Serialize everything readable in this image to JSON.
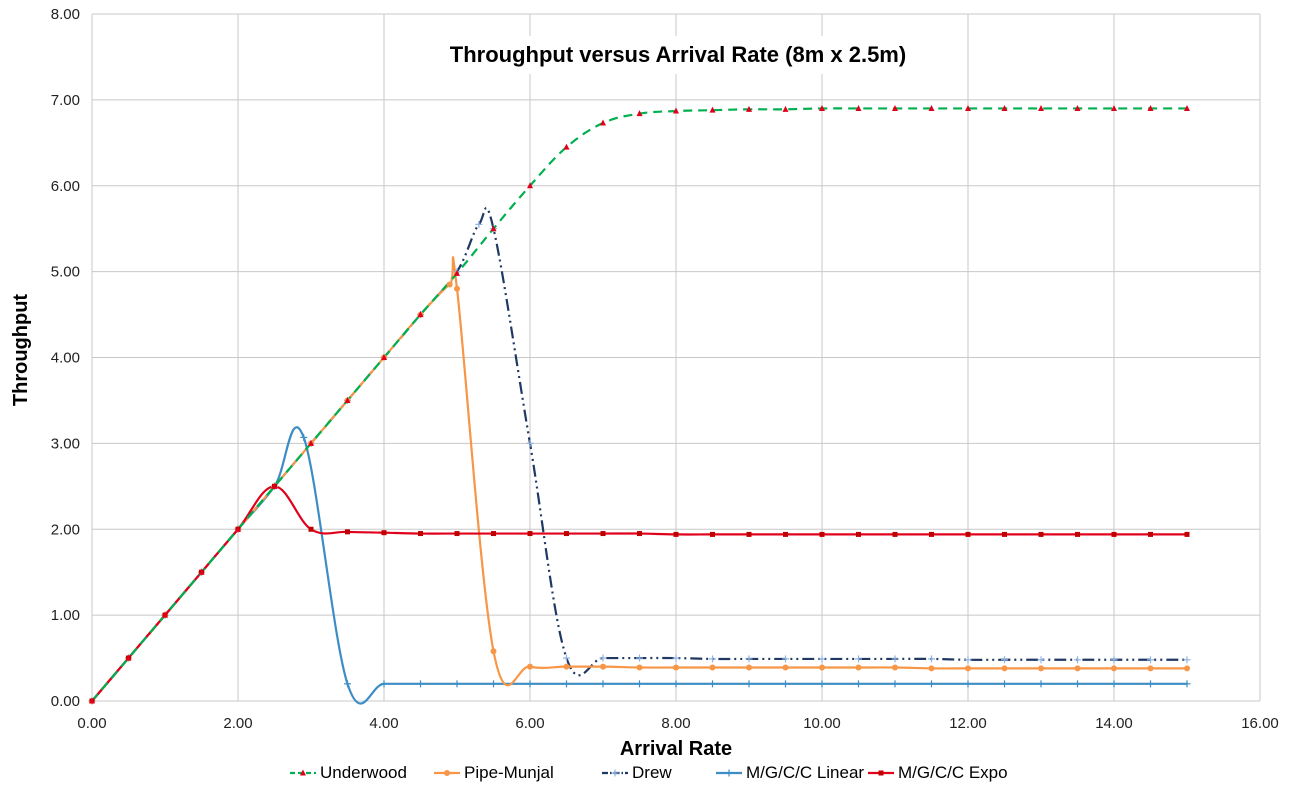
{
  "chart_data": {
    "type": "line",
    "title": "Throughput versus Arrival Rate (8m x 2.5m)",
    "xlabel": "Arrival Rate",
    "ylabel": "Throughput",
    "xlim": [
      0,
      16
    ],
    "ylim": [
      0,
      8
    ],
    "x_ticks": [
      "0.00",
      "2.00",
      "4.00",
      "6.00",
      "8.00",
      "10.00",
      "12.00",
      "14.00",
      "16.00"
    ],
    "y_ticks": [
      "0.00",
      "1.00",
      "2.00",
      "3.00",
      "4.00",
      "5.00",
      "6.00",
      "7.00",
      "8.00"
    ],
    "grid": true,
    "legend_position": "bottom",
    "series": [
      {
        "name": "Underwood",
        "color": "#00b050",
        "marker_color": "#e0001b",
        "dash": "dashed",
        "marker": "triangle",
        "x": [
          0,
          0.5,
          1,
          1.5,
          2,
          2.5,
          3,
          3.5,
          4,
          4.5,
          5,
          5.5,
          6,
          6.5,
          7,
          7.5,
          8,
          8.5,
          9,
          9.5,
          10,
          10.5,
          11,
          11.5,
          12,
          12.5,
          13,
          13.5,
          14,
          14.5,
          15
        ],
        "y": [
          0,
          0.5,
          1,
          1.5,
          2,
          2.5,
          3,
          3.5,
          4,
          4.5,
          4.98,
          5.5,
          6.0,
          6.45,
          6.73,
          6.84,
          6.87,
          6.88,
          6.89,
          6.89,
          6.9,
          6.9,
          6.9,
          6.9,
          6.9,
          6.9,
          6.9,
          6.9,
          6.9,
          6.9,
          6.9
        ]
      },
      {
        "name": "Pipe-Munjal",
        "color": "#f79646",
        "marker_color": "#f79646",
        "dash": "solid",
        "marker": "circle",
        "x": [
          0,
          0.5,
          1,
          1.5,
          2,
          2.5,
          3,
          3.5,
          4,
          4.5,
          4.9,
          5.0,
          5.5,
          6,
          6.5,
          7,
          7.5,
          8,
          8.5,
          9,
          9.5,
          10,
          10.5,
          11,
          11.5,
          12,
          12.5,
          13,
          13.5,
          14,
          14.5,
          15
        ],
        "y": [
          0,
          0.5,
          1,
          1.5,
          2,
          2.5,
          3,
          3.5,
          4,
          4.5,
          4.85,
          4.8,
          0.58,
          0.4,
          0.4,
          0.4,
          0.39,
          0.39,
          0.39,
          0.39,
          0.39,
          0.39,
          0.39,
          0.39,
          0.38,
          0.38,
          0.38,
          0.38,
          0.38,
          0.38,
          0.38,
          0.38
        ]
      },
      {
        "name": "Drew",
        "color": "#1f3864",
        "marker_color": "#8eb4e3",
        "dash": "dashdotdot",
        "marker": "plus",
        "x": [
          0,
          0.5,
          1,
          1.5,
          2,
          2.5,
          3,
          3.5,
          4,
          4.5,
          5,
          5.3,
          5.5,
          6,
          6.5,
          7,
          7.5,
          8,
          8.5,
          9,
          9.5,
          10,
          10.5,
          11,
          11.5,
          12,
          12.5,
          13,
          13.5,
          14,
          14.5,
          15
        ],
        "y": [
          0,
          0.5,
          1,
          1.5,
          2,
          2.5,
          3,
          3.5,
          4,
          4.5,
          5.0,
          5.55,
          5.5,
          3.0,
          0.5,
          0.5,
          0.5,
          0.5,
          0.49,
          0.49,
          0.49,
          0.49,
          0.49,
          0.49,
          0.49,
          0.48,
          0.48,
          0.48,
          0.48,
          0.48,
          0.48,
          0.48
        ]
      },
      {
        "name": "M/G/C/C Linear",
        "color": "#3c8dc5",
        "marker_color": "#3c8dc5",
        "dash": "solid",
        "marker": "plus",
        "x": [
          0,
          0.5,
          1,
          1.5,
          2,
          2.5,
          2.9,
          3.5,
          4,
          4.5,
          5,
          5.5,
          6,
          6.5,
          7,
          7.5,
          8,
          8.5,
          9,
          9.5,
          10,
          10.5,
          11,
          11.5,
          12,
          12.5,
          13,
          13.5,
          14,
          14.5,
          15
        ],
        "y": [
          0,
          0.5,
          1,
          1.5,
          2,
          2.5,
          3.07,
          0.2,
          0.2,
          0.2,
          0.2,
          0.2,
          0.2,
          0.2,
          0.2,
          0.2,
          0.2,
          0.2,
          0.2,
          0.2,
          0.2,
          0.2,
          0.2,
          0.2,
          0.2,
          0.2,
          0.2,
          0.2,
          0.2,
          0.2,
          0.2
        ]
      },
      {
        "name": "M/G/C/C Expo",
        "color": "#e0001b",
        "marker_color": "#c00000",
        "dash": "solid",
        "marker": "square",
        "x": [
          0,
          0.5,
          1,
          1.5,
          2,
          2.5,
          3,
          3.5,
          4,
          4.5,
          5,
          5.5,
          6,
          6.5,
          7,
          7.5,
          8,
          8.5,
          9,
          9.5,
          10,
          10.5,
          11,
          11.5,
          12,
          12.5,
          13,
          13.5,
          14,
          14.5,
          15
        ],
        "y": [
          0,
          0.5,
          1,
          1.5,
          2,
          2.5,
          2.0,
          1.97,
          1.96,
          1.95,
          1.95,
          1.95,
          1.95,
          1.95,
          1.95,
          1.95,
          1.94,
          1.94,
          1.94,
          1.94,
          1.94,
          1.94,
          1.94,
          1.94,
          1.94,
          1.94,
          1.94,
          1.94,
          1.94,
          1.94,
          1.94
        ]
      }
    ]
  }
}
